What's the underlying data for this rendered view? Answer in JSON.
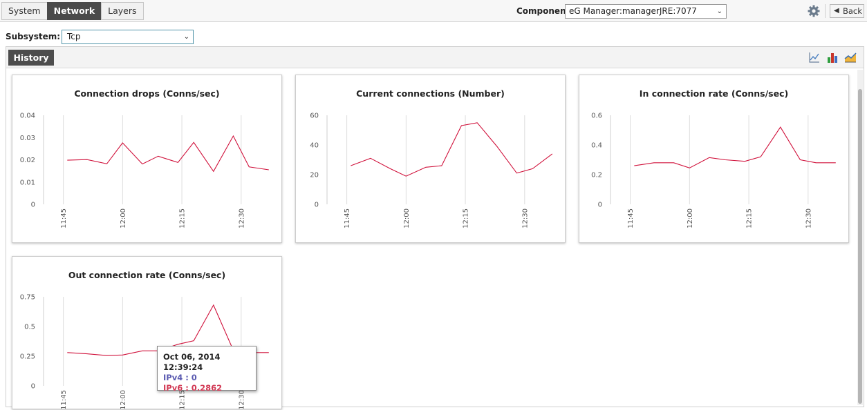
{
  "tabs": [
    {
      "label": "System",
      "active": false
    },
    {
      "label": "Network",
      "active": true
    },
    {
      "label": "Layers",
      "active": false
    }
  ],
  "component": {
    "label": "Component",
    "value": "eG Manager:managerJRE:7077"
  },
  "toolbar": {
    "back_label": "Back",
    "gear_icon": "gear-icon",
    "back_icon": "back-arrow-icon"
  },
  "subsystem": {
    "label": "Subsystem:",
    "value": "Tcp"
  },
  "panel": {
    "tab_label": "History",
    "tool_icons": [
      "line-chart-icon",
      "bar-chart-icon",
      "area-chart-icon"
    ]
  },
  "colors": {
    "series": "#d0103a",
    "grid": "#dddddd"
  },
  "x_ticks": [
    "11:45",
    "12:00",
    "12:15",
    "12:30"
  ],
  "chart_data": [
    {
      "type": "line",
      "title": "Connection drops (Conns/sec)",
      "ylim": [
        0,
        0.04
      ],
      "yticks": [
        "0.04",
        "0.03",
        "0.02",
        "0.01",
        "0"
      ],
      "x_ticks": [
        "11:45",
        "12:00",
        "12:15",
        "12:30"
      ],
      "x": [
        "11:46",
        "11:51",
        "11:56",
        "12:00",
        "12:05",
        "12:09",
        "12:14",
        "12:18",
        "12:23",
        "12:28",
        "12:32",
        "12:37"
      ],
      "values": [
        0.0198,
        0.0201,
        0.0182,
        0.0276,
        0.0181,
        0.0216,
        0.0188,
        0.0278,
        0.0148,
        0.0307,
        0.0168,
        0.0155
      ]
    },
    {
      "type": "line",
      "title": "Current connections (Number)",
      "ylim": [
        0,
        60
      ],
      "yticks": [
        "60",
        "40",
        "20",
        "0"
      ],
      "x_ticks": [
        "11:45",
        "12:00",
        "12:15",
        "12:30"
      ],
      "x": [
        "11:46",
        "11:51",
        "11:56",
        "12:00",
        "12:05",
        "12:09",
        "12:14",
        "12:18",
        "12:23",
        "12:28",
        "12:32",
        "12:37"
      ],
      "values": [
        26,
        31,
        24,
        19,
        25,
        26,
        53,
        55,
        39,
        21,
        24,
        34
      ]
    },
    {
      "type": "line",
      "title": "In connection rate (Conns/sec)",
      "ylim": [
        0,
        0.6
      ],
      "yticks": [
        "0.6",
        "0.4",
        "0.2",
        "0"
      ],
      "x_ticks": [
        "11:45",
        "12:00",
        "12:15",
        "12:30"
      ],
      "x": [
        "11:46",
        "11:51",
        "11:56",
        "12:00",
        "12:05",
        "12:09",
        "12:14",
        "12:18",
        "12:23",
        "12:28",
        "12:32",
        "12:37"
      ],
      "values": [
        0.26,
        0.28,
        0.28,
        0.245,
        0.315,
        0.3,
        0.29,
        0.32,
        0.52,
        0.3,
        0.28,
        0.28
      ]
    },
    {
      "type": "line",
      "title": "Out connection rate (Conns/sec)",
      "ylim": [
        0,
        0.75
      ],
      "yticks": [
        "0.75",
        "0.5",
        "0.25",
        "0"
      ],
      "x_ticks": [
        "11:45",
        "12:00",
        "12:15",
        "12:30"
      ],
      "x": [
        "11:46",
        "11:51",
        "11:56",
        "12:00",
        "12:05",
        "12:09",
        "12:14",
        "12:18",
        "12:23",
        "12:28",
        "12:32",
        "12:37"
      ],
      "values": [
        0.28,
        0.27,
        0.255,
        0.26,
        0.295,
        0.295,
        0.35,
        0.38,
        0.68,
        0.3,
        0.28,
        0.28
      ]
    }
  ],
  "tooltip": {
    "time": "Oct 06, 2014 12:39:24",
    "line1": "IPv4 : 0",
    "line2": "IPv6 : 0.2862"
  }
}
